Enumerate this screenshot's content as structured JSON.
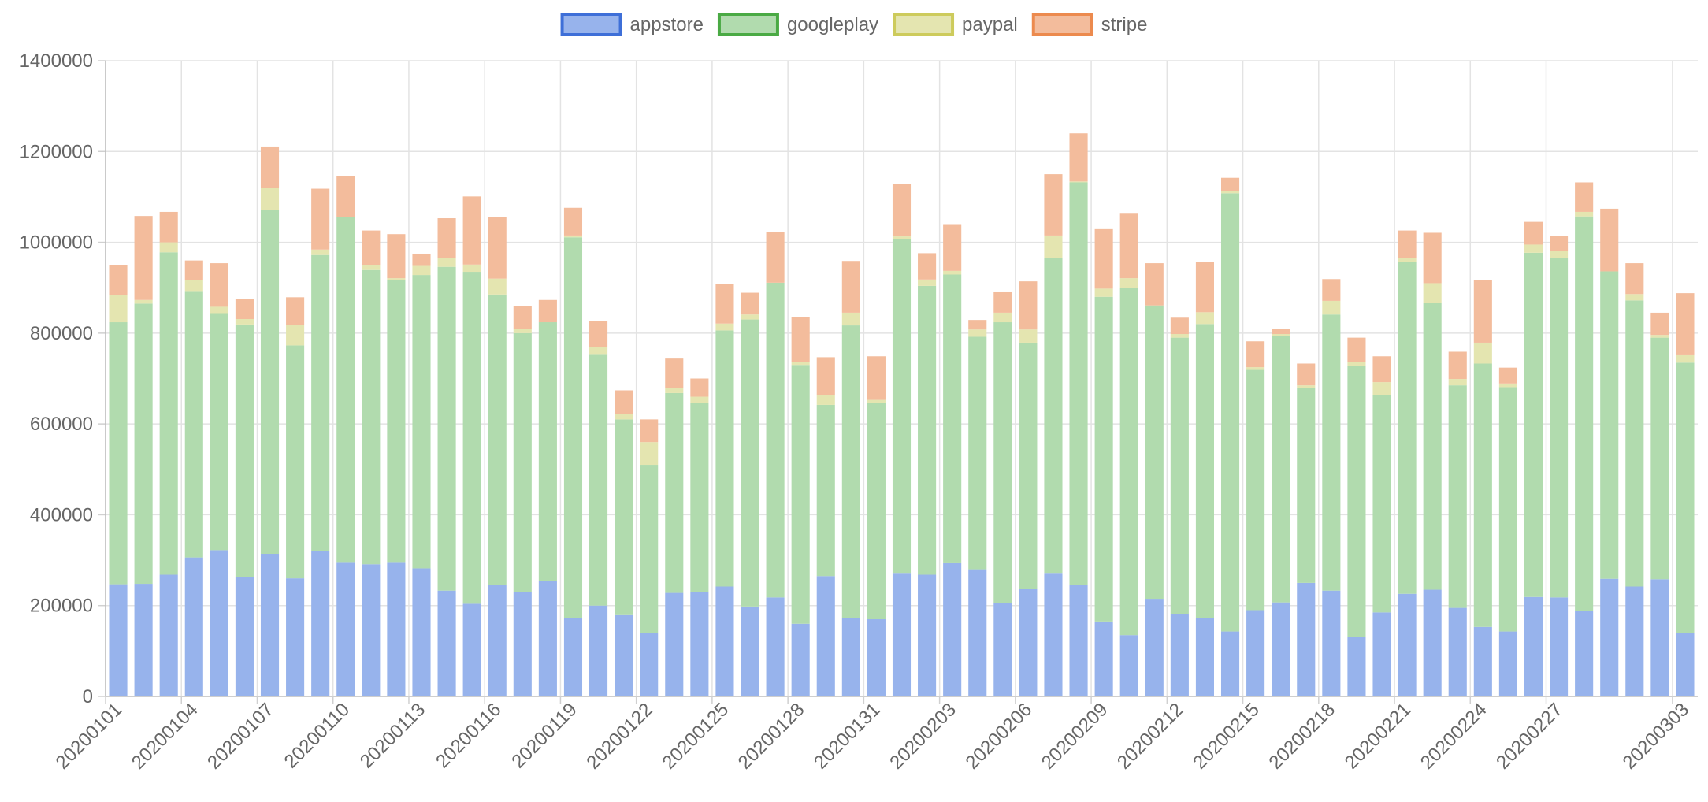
{
  "chart_data": {
    "type": "bar",
    "stacked": true,
    "title": "",
    "xlabel": "",
    "ylabel": "",
    "ylim": [
      0,
      1400000
    ],
    "y_ticks": [
      0,
      200000,
      400000,
      600000,
      800000,
      1000000,
      1200000,
      1400000
    ],
    "grid": true,
    "legend_position": "top-center",
    "categories": [
      "20200101",
      "20200102",
      "20200103",
      "20200104",
      "20200105",
      "20200106",
      "20200107",
      "20200108",
      "20200109",
      "20200110",
      "20200111",
      "20200112",
      "20200113",
      "20200114",
      "20200115",
      "20200116",
      "20200117",
      "20200118",
      "20200119",
      "20200120",
      "20200121",
      "20200122",
      "20200123",
      "20200124",
      "20200125",
      "20200126",
      "20200127",
      "20200128",
      "20200129",
      "20200130",
      "20200131",
      "20200201",
      "20200202",
      "20200203",
      "20200204",
      "20200205",
      "20200206",
      "20200207",
      "20200208",
      "20200209",
      "20200210",
      "20200211",
      "20200212",
      "20200213",
      "20200214",
      "20200215",
      "20200216",
      "20200217",
      "20200218",
      "20200219",
      "20200220",
      "20200221",
      "20200222",
      "20200223",
      "20200224",
      "20200225",
      "20200226",
      "20200227",
      "20200228",
      "20200229",
      "20200301",
      "20200302",
      "20200303"
    ],
    "tick_labels": [
      "20200101",
      "20200104",
      "20200107",
      "20200110",
      "20200113",
      "20200116",
      "20200119",
      "20200122",
      "20200125",
      "20200128",
      "20200131",
      "20200203",
      "20200206",
      "20200209",
      "20200212",
      "20200215",
      "20200218",
      "20200221",
      "20200224",
      "20200227",
      "20200303"
    ],
    "series": [
      {
        "name": "appstore",
        "border": "#3e6fd8",
        "fill": "#97b3ec",
        "values": [
          247000,
          248000,
          268000,
          306000,
          322000,
          262000,
          314000,
          260000,
          320000,
          296000,
          291000,
          296000,
          282000,
          233000,
          204000,
          245000,
          230000,
          255000,
          173000,
          200000,
          179000,
          140000,
          228000,
          230000,
          242000,
          198000,
          218000,
          160000,
          265000,
          172000,
          170000,
          272000,
          268000,
          295000,
          280000,
          206000,
          236000,
          272000,
          246000,
          165000,
          135000,
          215000,
          182000,
          172000,
          143000,
          190000,
          207000,
          250000,
          233000,
          131000,
          185000,
          226000,
          235000,
          195000,
          153000,
          143000,
          219000,
          218000,
          188000,
          259000,
          242000,
          258000,
          140000
        ]
      },
      {
        "name": "googleplay",
        "border": "#4aaa44",
        "fill": "#b1dbae",
        "values": [
          577000,
          617000,
          710000,
          585000,
          522000,
          557000,
          758000,
          513000,
          652000,
          759000,
          648000,
          620000,
          646000,
          713000,
          731000,
          640000,
          570000,
          569000,
          838000,
          554000,
          431000,
          370000,
          440000,
          416000,
          564000,
          632000,
          693000,
          570000,
          377000,
          645000,
          477000,
          735000,
          636000,
          634000,
          512000,
          618000,
          543000,
          693000,
          886000,
          715000,
          764000,
          646000,
          608000,
          648000,
          965000,
          529000,
          587000,
          430000,
          608000,
          597000,
          478000,
          730000,
          632000,
          490000,
          580000,
          538000,
          758000,
          748000,
          869000,
          677000,
          630000,
          532000,
          595000
        ]
      },
      {
        "name": "paypal",
        "border": "#cdcb5c",
        "fill": "#e4e5b0",
        "values": [
          60000,
          8000,
          22000,
          25000,
          14000,
          12000,
          48000,
          45000,
          12000,
          0,
          10000,
          5000,
          20000,
          20000,
          16000,
          35000,
          9000,
          0,
          4000,
          16000,
          12000,
          50000,
          12000,
          14000,
          15000,
          11000,
          0,
          6000,
          21000,
          28000,
          6000,
          6000,
          14000,
          8000,
          16000,
          21000,
          29000,
          50000,
          2000,
          18000,
          22000,
          0,
          8000,
          26000,
          5000,
          6000,
          4000,
          5000,
          30000,
          9000,
          29000,
          9000,
          43000,
          14000,
          46000,
          8000,
          18000,
          15000,
          10000,
          0,
          14000,
          6000,
          18000
        ]
      },
      {
        "name": "stripe",
        "border": "#ec8a4e",
        "fill": "#f3bc9c",
        "values": [
          66000,
          185000,
          67000,
          44000,
          96000,
          44000,
          91000,
          61000,
          134000,
          90000,
          77000,
          97000,
          27000,
          87000,
          150000,
          135000,
          50000,
          49000,
          61000,
          56000,
          52000,
          50000,
          64000,
          40000,
          87000,
          48000,
          112000,
          100000,
          84000,
          114000,
          96000,
          115000,
          58000,
          103000,
          21000,
          45000,
          106000,
          135000,
          106000,
          131000,
          142000,
          93000,
          36000,
          110000,
          29000,
          57000,
          11000,
          48000,
          48000,
          53000,
          57000,
          61000,
          111000,
          60000,
          138000,
          35000,
          50000,
          33000,
          65000,
          138000,
          68000,
          49000,
          135000
        ]
      }
    ]
  }
}
